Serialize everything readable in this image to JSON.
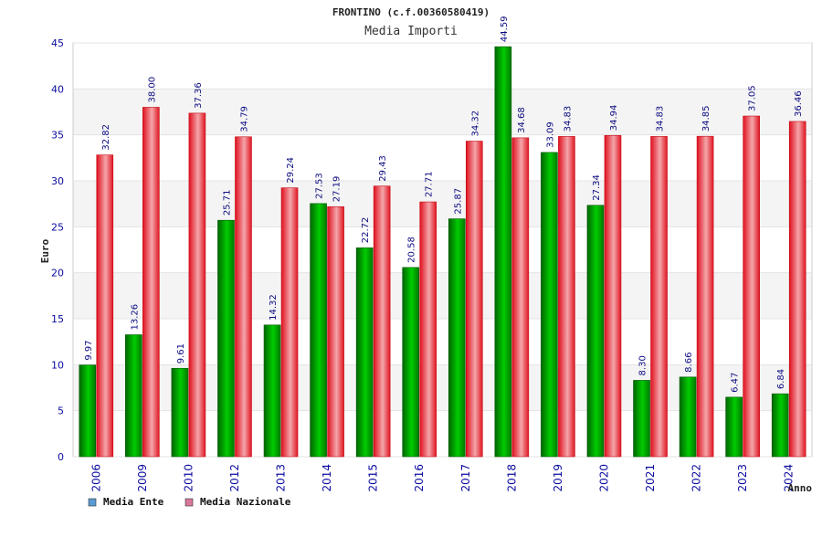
{
  "chart_data": {
    "type": "bar",
    "title": "FRONTINO (c.f.00360580419)",
    "subtitle": "Media Importi",
    "xlabel": "Anno",
    "ylabel": "Euro",
    "ylim": [
      0,
      45
    ],
    "yticks": [
      0,
      5,
      10,
      15,
      20,
      25,
      30,
      35,
      40,
      45
    ],
    "categories": [
      "2006",
      "2009",
      "2010",
      "2012",
      "2013",
      "2014",
      "2015",
      "2016",
      "2017",
      "2018",
      "2019",
      "2020",
      "2021",
      "2022",
      "2023",
      "2024"
    ],
    "series": [
      {
        "name": "Media Ente",
        "legend_color": "#5b9bd5",
        "colors": [
          "#006600",
          "#00cc00"
        ],
        "values": [
          9.97,
          13.26,
          9.61,
          25.71,
          14.32,
          27.53,
          22.72,
          20.58,
          25.87,
          44.59,
          33.09,
          27.34,
          8.3,
          8.66,
          6.47,
          6.84
        ],
        "labels": [
          "9.97",
          "13.26",
          "9.61",
          "25.71",
          "14.32",
          "27.53",
          "22.72",
          "20.58",
          "25.87",
          "44.59",
          "33.09",
          "27.34",
          "8.30",
          "8.66",
          "6.47",
          "6.84"
        ]
      },
      {
        "name": "Media Nazionale",
        "legend_color": "#d9779b",
        "colors": [
          "#e0101e",
          "#f4a6ab"
        ],
        "values": [
          32.82,
          38.0,
          37.36,
          34.79,
          29.24,
          27.19,
          29.43,
          27.71,
          34.32,
          34.68,
          34.83,
          34.94,
          34.83,
          34.85,
          37.05,
          36.46
        ],
        "labels": [
          "32.82",
          "38.00",
          "37.36",
          "34.79",
          "29.24",
          "27.19",
          "29.43",
          "27.71",
          "34.32",
          "34.68",
          "34.83",
          "34.94",
          "34.83",
          "34.85",
          "37.05",
          "36.46"
        ]
      }
    ],
    "grid": true,
    "legend_position": "bottom-left"
  }
}
